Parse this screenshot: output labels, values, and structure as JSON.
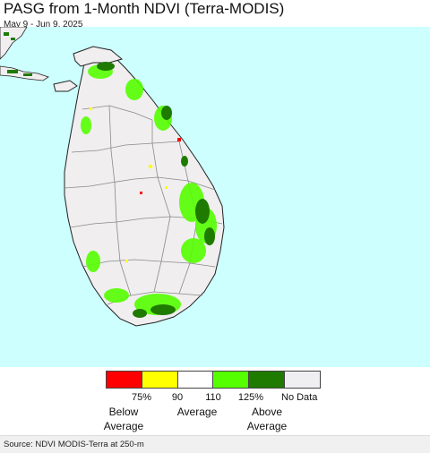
{
  "title": "PASG from 1-Month NDVI (Terra-MODIS)",
  "date_range": "May 9 - Jun 9, 2025",
  "colors": {
    "sea": "#ccfffe",
    "land_no_data": "#f0eeef",
    "boundary": "#8a8a8a",
    "coastline": "#222222"
  },
  "legend": {
    "swatches": [
      {
        "color": "#ff0000",
        "name": "below-75"
      },
      {
        "color": "#ffff00",
        "name": "75-90"
      },
      {
        "color": "#ffffff",
        "name": "90-110"
      },
      {
        "color": "#55ff00",
        "name": "110-125"
      },
      {
        "color": "#1f7a00",
        "name": "above-125"
      },
      {
        "color": "#efeef0",
        "name": "no-data"
      }
    ],
    "ticks": [
      "75%",
      "90",
      "110",
      "125%",
      "No Data"
    ],
    "below_average": "Below Average",
    "average": "Average",
    "above_average": "Above Average"
  },
  "source": "Source: NDVI MODIS-Terra at 250-m"
}
